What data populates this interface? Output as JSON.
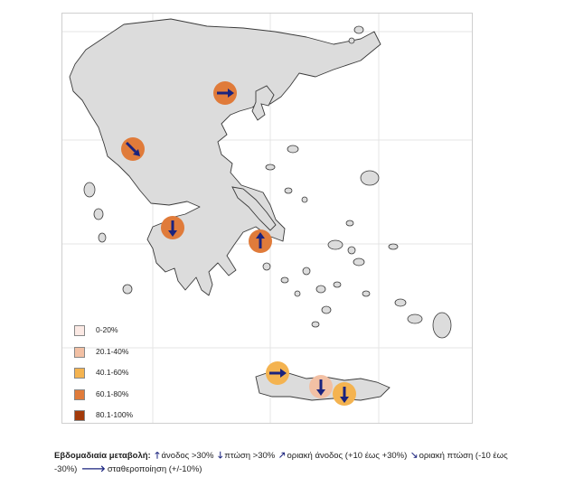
{
  "legend": {
    "items": [
      {
        "label": "0-20%",
        "color": "#fbe9e4"
      },
      {
        "label": "20.1-40%",
        "color": "#f2c0a4"
      },
      {
        "label": "40.1-60%",
        "color": "#f4b350"
      },
      {
        "label": "60.1-80%",
        "color": "#e07b3a"
      },
      {
        "label": "80.1-100%",
        "color": "#a33a0a"
      }
    ]
  },
  "caption": {
    "title": "Εβδομαδιαία μεταβολή:",
    "up_symbol": "🡑",
    "up_text": "άνοδος >30%",
    "down_symbol": "🡓",
    "down_text": "πτώση >30%",
    "slight_up_symbol": "🡕",
    "slight_up_text": "οριακή άνοδος (+10 έως +30%)",
    "slight_down_symbol": "🡖",
    "slight_down_text_1": "οριακή πτώση  (-10 έως",
    "slight_down_text_2": "-30%)",
    "stable_symbol": "🡒",
    "stable_text": "σταθεροποίηση (+/-10%)"
  },
  "colors": {
    "land": "#dcdcdc",
    "land_stroke": "#3a3a3a",
    "arrow": "#1a237e",
    "grid": "#e4e4e4"
  },
  "markers": [
    {
      "name": "thessaloniki",
      "category": "60.1-80%",
      "trend": "stable"
    },
    {
      "name": "ioannina",
      "category": "60.1-80%",
      "trend": "slight_down"
    },
    {
      "name": "patras",
      "category": "60.1-80%",
      "trend": "down"
    },
    {
      "name": "athens",
      "category": "60.1-80%",
      "trend": "up"
    },
    {
      "name": "chania",
      "category": "40.1-60%",
      "trend": "stable"
    },
    {
      "name": "rethymno",
      "category": "20.1-40%",
      "trend": "down"
    },
    {
      "name": "heraklion",
      "category": "40.1-60%",
      "trend": "down"
    }
  ]
}
